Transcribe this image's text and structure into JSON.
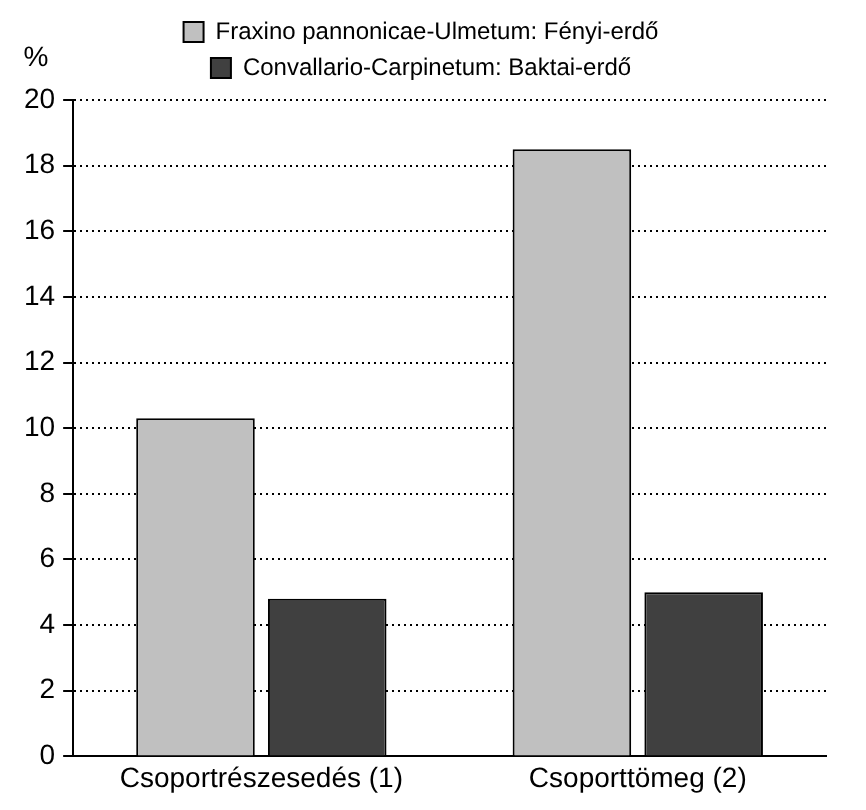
{
  "chart_data": {
    "type": "bar",
    "ylabel": "%",
    "categories": [
      "Csoportrészesedés (1)",
      "Csoporttömeg (2)"
    ],
    "series": [
      {
        "name": "Fraxino pannonicae-Ulmetum: Fényi-erdő",
        "color": "#c0c0c0",
        "values": [
          10.3,
          18.5
        ]
      },
      {
        "name": "Convallario-Carpinetum: Baktai-erdő",
        "color": "#404040",
        "values": [
          4.8,
          5.0
        ]
      }
    ],
    "ylim": [
      0,
      20
    ],
    "yticks": [
      0,
      2,
      4,
      6,
      8,
      10,
      12,
      14,
      16,
      18,
      20
    ],
    "grid": "y",
    "legend": "top",
    "line_style": "dotted"
  }
}
